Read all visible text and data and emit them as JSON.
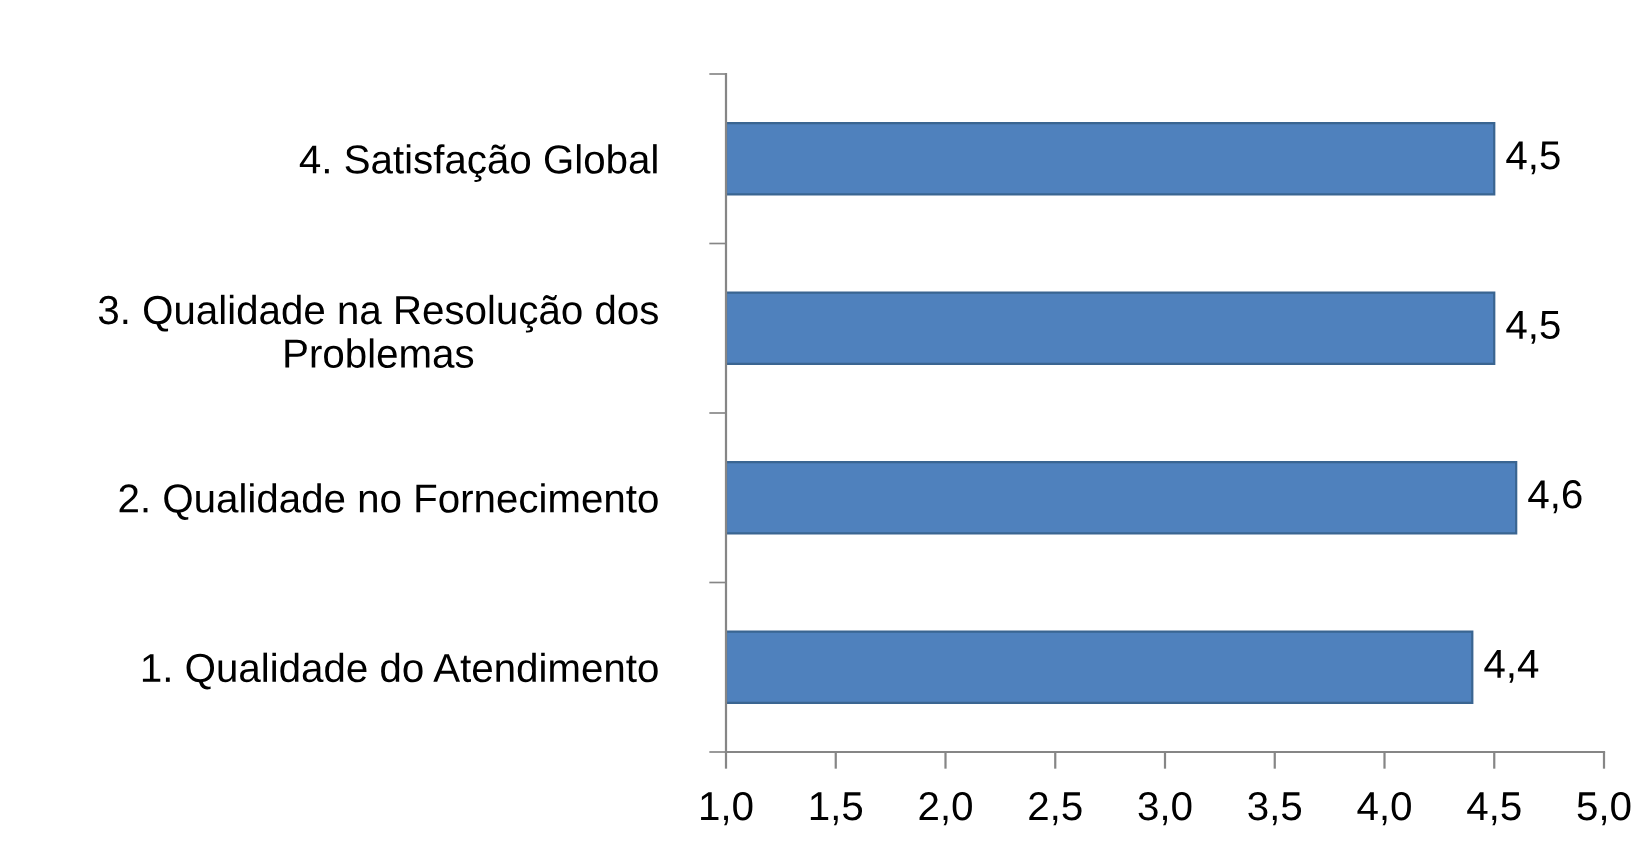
{
  "chart_data": {
    "type": "bar",
    "orientation": "horizontal",
    "categories": [
      "4. Satisfação Global",
      "3. Qualidade na Resolução dos\nProblemas",
      "2. Qualidade no Fornecimento",
      "1. Qualidade do Atendimento"
    ],
    "values": [
      4.5,
      4.5,
      4.6,
      4.4
    ],
    "value_labels": [
      "4,5",
      "4,5",
      "4,6",
      "4,4"
    ],
    "color": "#4f81bd",
    "xlim": [
      1,
      5
    ],
    "xticks": [
      {
        "value": 1,
        "label": "1,0"
      },
      {
        "value": 1.5,
        "label": "1,5"
      },
      {
        "value": 2,
        "label": "2,0"
      },
      {
        "value": 2.5,
        "label": "2,5"
      },
      {
        "value": 3,
        "label": "3,0"
      },
      {
        "value": 3.5,
        "label": "3,5"
      },
      {
        "value": 4,
        "label": "4,0"
      },
      {
        "value": 4.5,
        "label": "4,5"
      },
      {
        "value": 5,
        "label": "5,0"
      }
    ]
  }
}
